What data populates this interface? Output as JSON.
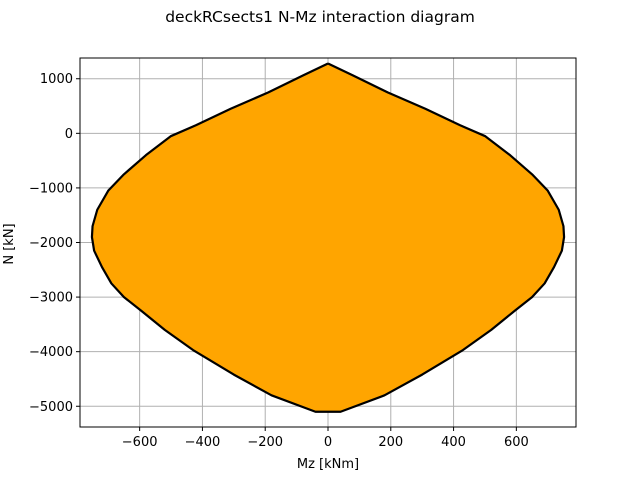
{
  "chart_data": {
    "type": "area",
    "title": "deckRCsects1 N-Mz interaction diagram",
    "xlabel": "Mz [kNm]",
    "ylabel": "N [kN]",
    "xlim": [
      -790,
      790
    ],
    "ylim": [
      -5380,
      1380
    ],
    "xticks": [
      -600,
      -400,
      -200,
      0,
      200,
      400,
      600
    ],
    "yticks": [
      1000,
      0,
      -1000,
      -2000,
      -3000,
      -4000,
      -5000
    ],
    "grid": true,
    "fill_color": "#ffa500",
    "edge_color": "#000000",
    "series": [
      {
        "x": [
          0,
          80,
          190,
          310,
          420,
          500,
          580,
          650,
          700,
          735,
          750,
          752,
          745,
          720,
          690,
          650,
          595,
          520,
          430,
          300,
          180,
          40,
          -40,
          -180,
          -300,
          -430,
          -520,
          -595,
          -650,
          -690,
          -720,
          -745,
          -752,
          -750,
          -735,
          -700,
          -650,
          -580,
          -500,
          -420,
          -310,
          -190,
          -80,
          0
        ],
        "y": [
          1280,
          1060,
          750,
          450,
          150,
          -50,
          -400,
          -750,
          -1050,
          -1400,
          -1700,
          -1900,
          -2150,
          -2450,
          -2750,
          -3000,
          -3250,
          -3600,
          -3970,
          -4420,
          -4800,
          -5100,
          -5100,
          -4800,
          -4420,
          -3970,
          -3600,
          -3250,
          -3000,
          -2750,
          -2450,
          -2150,
          -1900,
          -1700,
          -1400,
          -1050,
          -750,
          -400,
          -50,
          150,
          450,
          750,
          1060,
          1280
        ]
      }
    ]
  }
}
